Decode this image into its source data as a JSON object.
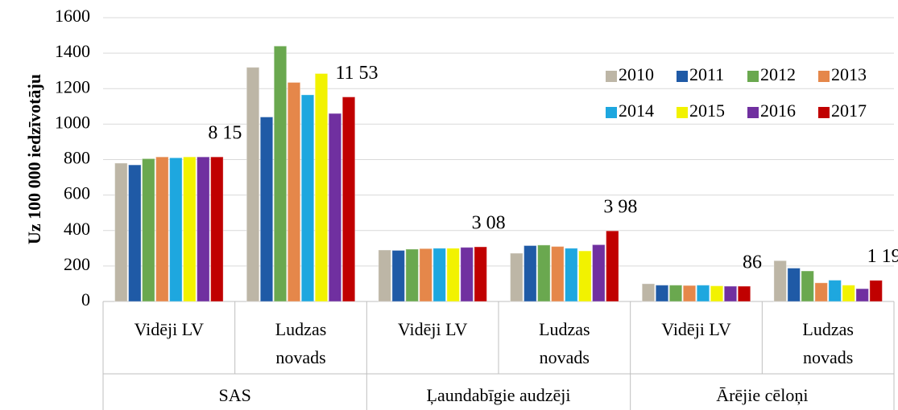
{
  "chart_data": {
    "type": "bar",
    "y_label": "Uz 100 000 iedzīvotāju",
    "categories": [
      "Vidēji LV",
      "Ludzas novads",
      "Vidēji LV",
      "Ludzas novads",
      "Vidēji LV",
      "Ludzas novads"
    ],
    "groups": [
      "SAS",
      "Ļaundabīgie audzēji",
      "Ārējie cēloņi"
    ],
    "series": [
      {
        "name": "2010",
        "color": "#bdb6a6",
        "values": [
          780,
          1320,
          290,
          272,
          100,
          230
        ]
      },
      {
        "name": "2011",
        "color": "#1f5aa6",
        "values": [
          770,
          1040,
          288,
          315,
          92,
          188
        ]
      },
      {
        "name": "2012",
        "color": "#6aa84f",
        "values": [
          805,
          1440,
          295,
          318,
          92,
          172
        ]
      },
      {
        "name": "2013",
        "color": "#e5874a",
        "values": [
          815,
          1235,
          298,
          310,
          90,
          105
        ]
      },
      {
        "name": "2014",
        "color": "#1ea7df",
        "values": [
          810,
          1165,
          300,
          300,
          92,
          120
        ]
      },
      {
        "name": "2015",
        "color": "#f2f200",
        "values": [
          815,
          1285,
          300,
          285,
          88,
          92
        ]
      },
      {
        "name": "2016",
        "color": "#7030a0",
        "values": [
          815,
          1060,
          305,
          320,
          86,
          72
        ]
      },
      {
        "name": "2017",
        "color": "#c00000",
        "values": [
          815,
          1153,
          308,
          398,
          86,
          119
        ],
        "value_labels": [
          "8 15",
          "11 53",
          "3 08",
          "3 98",
          "86",
          "1 19"
        ]
      }
    ],
    "ylim": [
      0,
      1600
    ],
    "yticks": [
      0,
      200,
      400,
      600,
      800,
      1000,
      1200,
      1400,
      1600
    ],
    "grid": true
  }
}
